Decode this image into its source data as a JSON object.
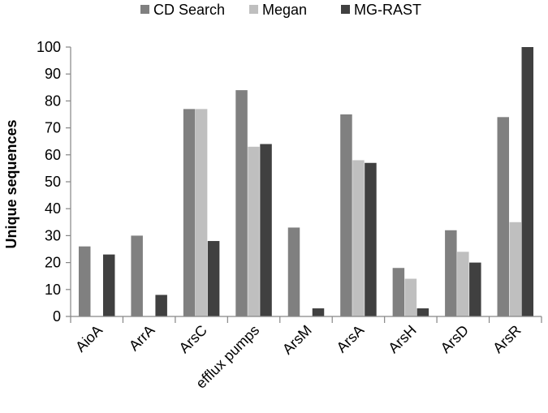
{
  "chart_data": {
    "type": "bar",
    "title": "",
    "xlabel": "",
    "ylabel": "Unique sequences",
    "ylim": [
      0,
      100
    ],
    "yticks": [
      0,
      10,
      20,
      30,
      40,
      50,
      60,
      70,
      80,
      90,
      100
    ],
    "categories": [
      "AioA",
      "ArrA",
      "ArsC",
      "efflux pumps",
      "ArsM",
      "ArsA",
      "ArsH",
      "ArsD",
      "ArsR"
    ],
    "series": [
      {
        "name": "CD Search",
        "color": "#808080",
        "values": [
          26,
          30,
          77,
          84,
          33,
          75,
          18,
          32,
          74
        ]
      },
      {
        "name": "Megan",
        "color": "#bfbfbf",
        "values": [
          0,
          0,
          77,
          63,
          0,
          58,
          14,
          24,
          35
        ]
      },
      {
        "name": "MG-RAST",
        "color": "#404040",
        "values": [
          23,
          8,
          28,
          64,
          3,
          57,
          3,
          20,
          100
        ]
      }
    ],
    "grid": false,
    "legend_position": "top"
  }
}
